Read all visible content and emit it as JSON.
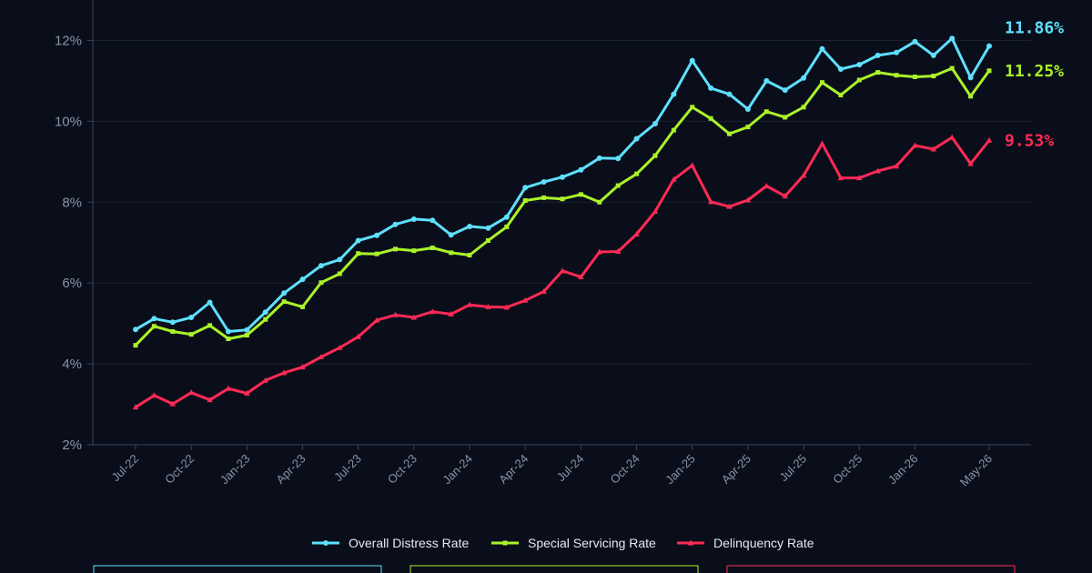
{
  "chart_data": {
    "type": "line",
    "title": "",
    "xlabel": "",
    "ylabel": "",
    "ylim": [
      2,
      13
    ],
    "yticks": [
      "2%",
      "4%",
      "6%",
      "8%",
      "10%",
      "12%"
    ],
    "ytick_values": [
      2,
      4,
      6,
      8,
      10,
      12
    ],
    "grid": "horizontal",
    "legend": "bottom-center",
    "x": [
      "Jul-22",
      "Aug-22",
      "Sep-22",
      "Oct-22",
      "Nov-22",
      "Dec-22",
      "Jan-23",
      "Feb-23",
      "Mar-23",
      "Apr-23",
      "May-23",
      "Jun-23",
      "Jul-23",
      "Aug-23",
      "Sep-23",
      "Oct-23",
      "Nov-23",
      "Dec-23",
      "Jan-24",
      "Feb-24",
      "Mar-24",
      "Apr-24",
      "May-24",
      "Jun-24",
      "Jul-24",
      "Aug-24",
      "Sep-24",
      "Oct-24",
      "Nov-24",
      "Dec-24",
      "Jan-25",
      "Feb-25",
      "Mar-25",
      "Apr-25",
      "May-25",
      "Jun-25",
      "Jul-25",
      "Aug-25",
      "Sep-25",
      "Oct-25",
      "Nov-25",
      "Dec-25",
      "Jan-26",
      "Feb-26",
      "Mar-26",
      "Apr-26",
      "May-26"
    ],
    "xtick_labels": [
      "Jul-22",
      "Oct-22",
      "Jan-23",
      "Apr-23",
      "Jul-23",
      "Oct-23",
      "Jan-24",
      "Apr-24",
      "Jul-24",
      "Oct-24",
      "Jan-25",
      "Apr-25",
      "Jul-25",
      "Oct-25",
      "Jan-26",
      "May-26"
    ],
    "series": [
      {
        "name": "Overall Distress Rate",
        "color": "#5ee0ff",
        "end_label": "11.86%",
        "values": [
          4.85,
          5.12,
          5.03,
          5.15,
          5.52,
          4.8,
          4.84,
          5.28,
          5.75,
          6.09,
          6.43,
          6.58,
          7.05,
          7.18,
          7.45,
          7.58,
          7.55,
          7.19,
          7.4,
          7.36,
          7.63,
          8.36,
          8.5,
          8.62,
          8.8,
          9.09,
          9.08,
          9.57,
          9.94,
          10.67,
          11.5,
          10.82,
          10.67,
          10.3,
          11.0,
          10.77,
          11.07,
          11.79,
          11.29,
          11.4,
          11.63,
          11.7,
          11.97,
          11.63,
          12.05,
          11.08,
          11.86
        ]
      },
      {
        "name": "Special Servicing Rate",
        "color": "#aaf22a",
        "end_label": "11.25%",
        "values": [
          4.46,
          4.93,
          4.8,
          4.73,
          4.95,
          4.62,
          4.71,
          5.1,
          5.54,
          5.41,
          6.01,
          6.23,
          6.73,
          6.72,
          6.84,
          6.8,
          6.87,
          6.75,
          6.69,
          7.05,
          7.39,
          8.04,
          8.11,
          8.08,
          8.19,
          8.0,
          8.41,
          8.7,
          9.15,
          9.78,
          10.35,
          10.07,
          9.69,
          9.86,
          10.24,
          10.1,
          10.35,
          10.96,
          10.65,
          11.02,
          11.21,
          11.14,
          11.1,
          11.12,
          11.31,
          10.62,
          11.25
        ]
      },
      {
        "name": "Delinquency Rate",
        "color": "#ff2a55",
        "end_label": "9.53%",
        "values": [
          2.93,
          3.22,
          3.01,
          3.29,
          3.11,
          3.39,
          3.27,
          3.59,
          3.78,
          3.92,
          4.17,
          4.4,
          4.67,
          5.08,
          5.21,
          5.15,
          5.29,
          5.23,
          5.46,
          5.41,
          5.4,
          5.57,
          5.79,
          6.3,
          6.15,
          6.77,
          6.78,
          7.21,
          7.77,
          8.56,
          8.91,
          8.01,
          7.89,
          8.05,
          8.4,
          8.15,
          8.66,
          9.45,
          8.6,
          8.6,
          8.77,
          8.89,
          9.4,
          9.31,
          9.6,
          8.95,
          9.53
        ]
      }
    ]
  }
}
